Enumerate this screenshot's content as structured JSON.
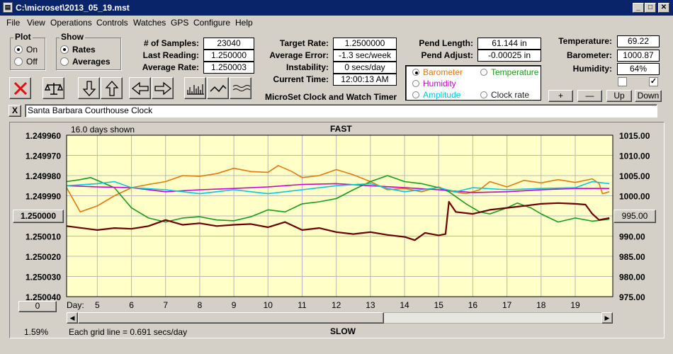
{
  "window": {
    "title": "C:\\microset\\2013_05_19.mst"
  },
  "menu": [
    "File",
    "View",
    "Operations",
    "Controls",
    "Watches",
    "GPS",
    "Configure",
    "Help"
  ],
  "plot_group": {
    "title": "Plot",
    "options": [
      {
        "label": "On",
        "selected": true
      },
      {
        "label": "Off",
        "selected": false
      }
    ]
  },
  "show_group": {
    "title": "Show",
    "options": [
      {
        "label": "Rates",
        "selected": true
      },
      {
        "label": "Averages",
        "selected": false
      }
    ]
  },
  "stats": {
    "samples_label": "# of Samples:",
    "samples": "23040",
    "last_label": "Last Reading:",
    "last": "1.250000",
    "avg_rate_label": "Average Rate:",
    "avg_rate": "1.250003",
    "target_label": "Target Rate:",
    "target": "1.2500000",
    "avg_err_label": "Average Error:",
    "avg_err": "-1.3 sec/week",
    "instab_label": "Instability:",
    "instab": "0 secs/day",
    "time_label": "Current Time:",
    "time": "12:00:13 AM",
    "pend_len_label": "Pend Length:",
    "pend_len": "61.144 in",
    "pend_adj_label": "Pend Adjust:",
    "pend_adj": "-0.00025 in",
    "temp_label": "Temperature:",
    "temp": "69.22",
    "baro_label": "Barometer:",
    "baro": "1000.87",
    "humid_label": "Humidity:",
    "humid": "64%"
  },
  "app_title": "MicroSet Clock and Watch Timer",
  "sensor_options": [
    {
      "label": "Barometer",
      "color": "#e07a10",
      "selected": true
    },
    {
      "label": "Temperature",
      "color": "#1a9a1a",
      "selected": false
    },
    {
      "label": "Humidity",
      "color": "#cc00cc",
      "selected": false
    },
    {
      "label": "Amplitude",
      "color": "#00c8e0",
      "selected": false
    },
    {
      "label": "Clock rate",
      "color": "#202020",
      "selected": false
    }
  ],
  "small_buttons": {
    "plus": "+",
    "minus": "—",
    "up": "Up",
    "down": "Down"
  },
  "checkboxes": [
    {
      "checked": false
    },
    {
      "checked": true
    }
  ],
  "watch_name": "Santa Barbara Courthouse Clock",
  "close_x": "X",
  "chart": {
    "days_shown": "16.0 days shown",
    "fast_label": "FAST",
    "slow_label": "SLOW",
    "left_marker": "1.250000",
    "right_marker": "995.00",
    "zero_button": "0",
    "percent": "1.59%",
    "day_label": "Day:",
    "grid_note": "Each grid line = 0.691 secs/day"
  },
  "chart_data": {
    "type": "line",
    "left_axis": {
      "ticks": [
        "1.249960",
        "1.249970",
        "1.249980",
        "1.249990",
        "1.250000",
        "1.250010",
        "1.250020",
        "1.250030",
        "1.250040"
      ]
    },
    "right_axis": {
      "ticks": [
        "1015.00",
        "1010.00",
        "1005.00",
        "1000.00",
        "995.00",
        "990.00",
        "985.00",
        "980.00",
        "975.00"
      ],
      "ylim": [
        975,
        1015
      ]
    },
    "x": {
      "ticks": [
        5,
        6,
        7,
        8,
        9,
        10,
        11,
        12,
        13,
        14,
        15,
        16,
        17,
        18,
        19
      ],
      "xlim": [
        4.1,
        20.1
      ]
    },
    "grid": true,
    "background": "#ffffc8",
    "series": [
      {
        "name": "Barometer",
        "color": "#e07a10",
        "points": [
          [
            4.1,
            1002.0
          ],
          [
            4.5,
            996.0
          ],
          [
            5.0,
            997.5
          ],
          [
            5.5,
            1000.0
          ],
          [
            6.0,
            1002.0
          ],
          [
            6.5,
            1002.8
          ],
          [
            7.0,
            1003.5
          ],
          [
            7.5,
            1005.0
          ],
          [
            8.0,
            1004.8
          ],
          [
            8.5,
            1005.5
          ],
          [
            9.0,
            1006.8
          ],
          [
            9.5,
            1006.0
          ],
          [
            10.0,
            1005.8
          ],
          [
            10.3,
            1007.5
          ],
          [
            10.7,
            1006.0
          ],
          [
            11.0,
            1004.5
          ],
          [
            11.5,
            1005.0
          ],
          [
            12.0,
            1006.5
          ],
          [
            12.5,
            1005.2
          ],
          [
            13.0,
            1003.5
          ],
          [
            13.5,
            1001.5
          ],
          [
            14.0,
            1001.8
          ],
          [
            14.5,
            1001.0
          ],
          [
            15.0,
            1002.2
          ],
          [
            15.3,
            1001.2
          ],
          [
            15.8,
            1000.5
          ],
          [
            16.2,
            1001.5
          ],
          [
            16.5,
            1003.5
          ],
          [
            17.0,
            1002.2
          ],
          [
            17.5,
            1003.8
          ],
          [
            18.0,
            1003.2
          ],
          [
            18.5,
            1004.0
          ],
          [
            19.0,
            1003.3
          ],
          [
            19.5,
            1004.2
          ],
          [
            19.7,
            1003.0
          ],
          [
            19.8,
            1000.5
          ],
          [
            20.0,
            1001.0
          ]
        ]
      },
      {
        "name": "Temperature",
        "color": "#1a9a1a",
        "points": [
          [
            4.1,
            1003.5
          ],
          [
            4.5,
            1004.0
          ],
          [
            4.8,
            1004.5
          ],
          [
            5.0,
            1003.8
          ],
          [
            5.5,
            1002.0
          ],
          [
            6.0,
            997.0
          ],
          [
            6.5,
            994.5
          ],
          [
            7.0,
            993.5
          ],
          [
            7.5,
            994.5
          ],
          [
            8.0,
            994.8
          ],
          [
            8.5,
            994.0
          ],
          [
            9.0,
            993.8
          ],
          [
            9.5,
            994.8
          ],
          [
            10.0,
            996.5
          ],
          [
            10.5,
            996.0
          ],
          [
            11.0,
            998.0
          ],
          [
            11.5,
            998.5
          ],
          [
            12.0,
            999.3
          ],
          [
            12.5,
            1001.5
          ],
          [
            13.0,
            1003.5
          ],
          [
            13.5,
            1005.0
          ],
          [
            14.0,
            1003.5
          ],
          [
            14.5,
            1003.0
          ],
          [
            15.0,
            1002.0
          ],
          [
            15.3,
            1001.0
          ],
          [
            15.8,
            998.0
          ],
          [
            16.2,
            996.0
          ],
          [
            16.5,
            995.5
          ],
          [
            17.0,
            997.0
          ],
          [
            17.3,
            998.2
          ],
          [
            17.7,
            997.0
          ],
          [
            18.0,
            995.5
          ],
          [
            18.5,
            993.5
          ],
          [
            19.0,
            994.5
          ],
          [
            19.5,
            993.7
          ],
          [
            20.0,
            994.2
          ]
        ]
      },
      {
        "name": "Humidity",
        "color": "#cc00cc",
        "points": [
          [
            4.1,
            1002.5
          ],
          [
            5.0,
            1002.2
          ],
          [
            6.0,
            1002.0
          ],
          [
            7.0,
            1001.0
          ],
          [
            8.0,
            1001.5
          ],
          [
            9.0,
            1001.8
          ],
          [
            10.0,
            1002.2
          ],
          [
            11.0,
            1002.8
          ],
          [
            12.0,
            1003.0
          ],
          [
            13.0,
            1002.5
          ],
          [
            14.0,
            1002.0
          ],
          [
            15.0,
            1001.5
          ],
          [
            16.0,
            1000.8
          ],
          [
            17.0,
            1001.0
          ],
          [
            18.0,
            1001.5
          ],
          [
            19.0,
            1001.8
          ],
          [
            20.0,
            1001.8
          ]
        ]
      },
      {
        "name": "Amplitude",
        "color": "#00c8e0",
        "points": [
          [
            4.1,
            1002.5
          ],
          [
            5.0,
            1003.0
          ],
          [
            5.5,
            1003.5
          ],
          [
            6.0,
            1002.0
          ],
          [
            7.0,
            1001.5
          ],
          [
            8.0,
            1000.5
          ],
          [
            8.5,
            1001.0
          ],
          [
            9.0,
            1001.5
          ],
          [
            10.0,
            1000.5
          ],
          [
            11.0,
            1001.5
          ],
          [
            12.0,
            1002.5
          ],
          [
            13.0,
            1003.0
          ],
          [
            13.5,
            1001.8
          ],
          [
            14.0,
            1001.0
          ],
          [
            15.0,
            1002.0
          ],
          [
            15.5,
            1001.0
          ],
          [
            16.0,
            1002.0
          ],
          [
            17.0,
            1001.5
          ],
          [
            18.0,
            1001.8
          ],
          [
            19.0,
            1002.0
          ],
          [
            19.5,
            1003.5
          ],
          [
            20.0,
            1003.0
          ]
        ]
      },
      {
        "name": "Clock rate",
        "color": "#6b0000",
        "points": [
          [
            4.1,
            992.5
          ],
          [
            5.0,
            991.5
          ],
          [
            5.5,
            992.0
          ],
          [
            6.0,
            991.8
          ],
          [
            6.5,
            992.5
          ],
          [
            7.0,
            994.0
          ],
          [
            7.5,
            992.8
          ],
          [
            8.0,
            993.2
          ],
          [
            8.5,
            992.5
          ],
          [
            9.0,
            992.8
          ],
          [
            9.5,
            993.0
          ],
          [
            10.0,
            992.2
          ],
          [
            10.5,
            993.5
          ],
          [
            11.0,
            991.5
          ],
          [
            11.5,
            992.0
          ],
          [
            12.0,
            991.0
          ],
          [
            12.5,
            990.5
          ],
          [
            13.0,
            991.0
          ],
          [
            13.5,
            990.3
          ],
          [
            14.0,
            989.8
          ],
          [
            14.3,
            989.0
          ],
          [
            14.6,
            990.8
          ],
          [
            15.0,
            990.2
          ],
          [
            15.2,
            990.5
          ],
          [
            15.3,
            998.5
          ],
          [
            15.5,
            996.0
          ],
          [
            16.0,
            995.5
          ],
          [
            16.5,
            996.5
          ],
          [
            17.0,
            997.0
          ],
          [
            17.5,
            997.5
          ],
          [
            18.0,
            998.0
          ],
          [
            18.5,
            998.2
          ],
          [
            19.0,
            998.0
          ],
          [
            19.3,
            997.8
          ],
          [
            19.5,
            995.5
          ],
          [
            19.7,
            994.0
          ],
          [
            20.0,
            994.5
          ]
        ]
      }
    ]
  }
}
